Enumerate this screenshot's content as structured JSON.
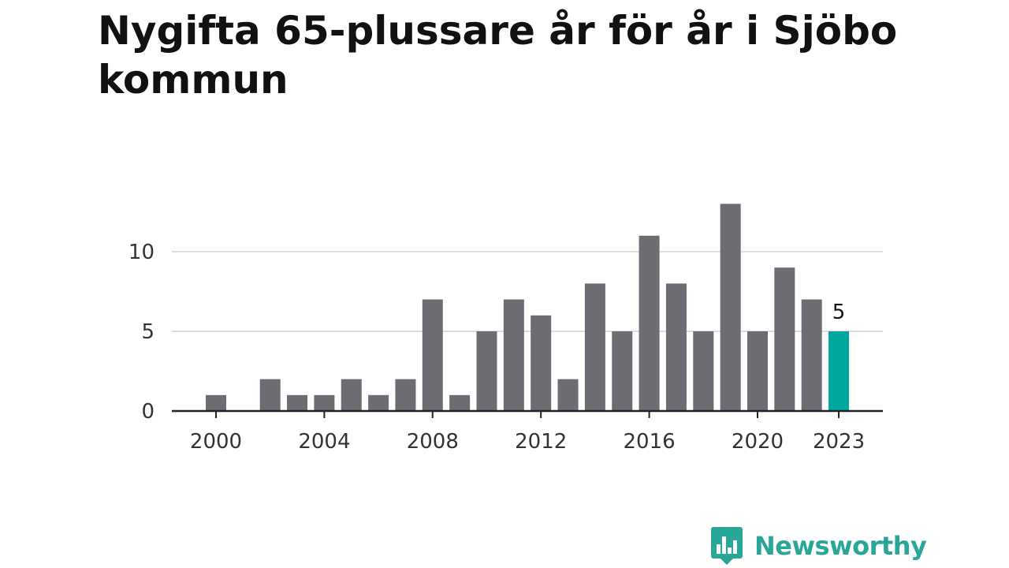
{
  "title": "Nygifta 65-plussare år för år i Sjöbo kommun",
  "brand": {
    "name": "Newsworthy",
    "color": "#28a698"
  },
  "colors": {
    "bar": "#6d6c72",
    "highlight": "#00a79c",
    "grid": "#dddddd",
    "axis": "#222222",
    "text": "#333333"
  },
  "chart_data": {
    "type": "bar",
    "x": [
      2000,
      2001,
      2002,
      2003,
      2004,
      2005,
      2006,
      2007,
      2008,
      2009,
      2010,
      2011,
      2012,
      2013,
      2014,
      2015,
      2016,
      2017,
      2018,
      2019,
      2020,
      2021,
      2022,
      2023
    ],
    "values": [
      1,
      0,
      2,
      1,
      1,
      2,
      1,
      2,
      7,
      1,
      5,
      7,
      6,
      2,
      8,
      5,
      11,
      8,
      5,
      13,
      5,
      9,
      7,
      5
    ],
    "x_ticks": [
      "2000",
      "2004",
      "2008",
      "2012",
      "2016",
      "2020",
      "2023"
    ],
    "y_ticks": [
      "0",
      "5",
      "10"
    ],
    "ylim": [
      0,
      13
    ],
    "highlight": {
      "x": 2023,
      "label": "5"
    },
    "grid": true,
    "xlabel": "",
    "ylabel": ""
  }
}
